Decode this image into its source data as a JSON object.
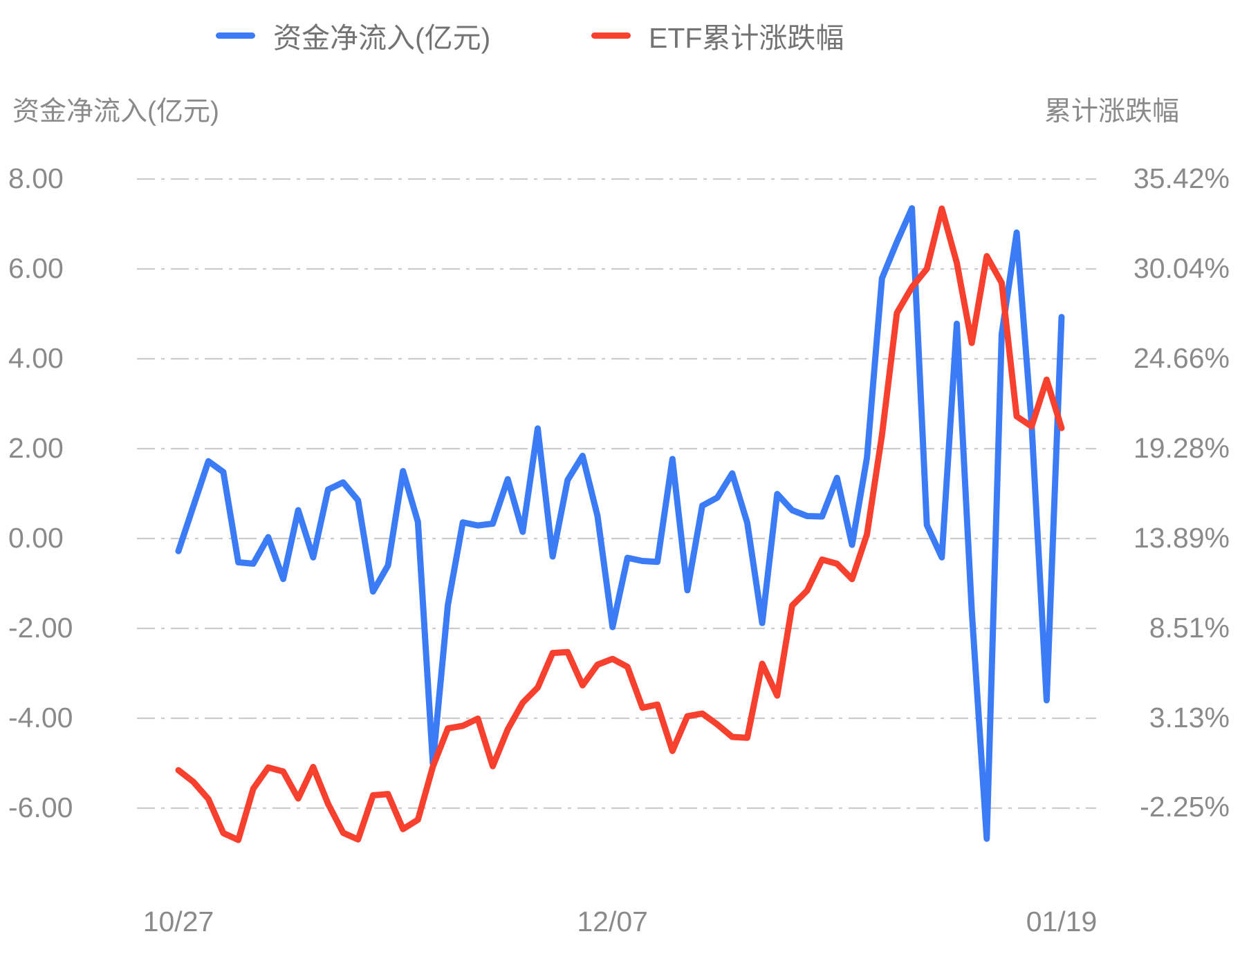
{
  "legend": {
    "items": [
      {
        "label": "资金净流入(亿元)",
        "color": "#3b7cf6"
      },
      {
        "label": "ETF累计涨跌幅",
        "color": "#f8402f"
      }
    ]
  },
  "axes": {
    "left_title": "资金净流入(亿元)",
    "right_title": "累计涨跌幅",
    "left_tick_labels": [
      "8.00",
      "6.00",
      "4.00",
      "2.00",
      "0.00",
      "-2.00",
      "-4.00",
      "-6.00"
    ],
    "left_tick_values": [
      8,
      6,
      4,
      2,
      0,
      -2,
      -4,
      -6
    ],
    "right_tick_labels": [
      "35.42%",
      "30.04%",
      "24.66%",
      "19.28%",
      "13.89%",
      "8.51%",
      "3.13%",
      "-2.25%"
    ],
    "right_tick_values": [
      35.42,
      30.04,
      24.66,
      19.28,
      13.89,
      8.51,
      3.13,
      -2.25
    ],
    "x_tick_labels": [
      {
        "label": "10/27",
        "index": 0
      },
      {
        "label": "12/07",
        "index": 29
      },
      {
        "label": "01/19",
        "index": 59
      }
    ]
  },
  "chart_data": {
    "type": "line",
    "title": "",
    "xlabel": "",
    "x_axis": {
      "type": "category-daily",
      "first_label": "10/27",
      "middle_label": "12/07",
      "last_label": "01/19",
      "point_count": 60
    },
    "left_axis": {
      "label": "资金净流入(亿元)",
      "range": [
        -8.06,
        8.0
      ],
      "gridlines_at": [
        8,
        6,
        4,
        2,
        0,
        -2,
        -4,
        -6
      ]
    },
    "right_axis": {
      "label": "累计涨跌幅",
      "range_percent": [
        -7.63,
        35.42
      ],
      "gridlines_at_percent": [
        35.42,
        30.04,
        24.66,
        19.28,
        13.89,
        8.51,
        3.13,
        -2.25
      ]
    },
    "grid": "horizontal dash-dot lines",
    "legend_position": "top-center",
    "series": [
      {
        "name": "资金净流入(亿元)",
        "axis": "left",
        "color": "#3b7cf6",
        "values": [
          -0.28,
          0.72,
          1.72,
          1.48,
          -0.53,
          -0.56,
          0.03,
          -0.9,
          0.63,
          -0.42,
          1.09,
          1.25,
          0.85,
          -1.18,
          -0.6,
          1.5,
          0.37,
          -5.01,
          -1.48,
          0.36,
          0.29,
          0.33,
          1.32,
          0.15,
          2.45,
          -0.4,
          1.3,
          1.84,
          0.5,
          -1.97,
          -0.43,
          -0.5,
          -0.52,
          1.77,
          -1.15,
          0.73,
          0.91,
          1.45,
          0.35,
          -1.88,
          0.99,
          0.63,
          0.5,
          0.49,
          1.35,
          -0.14,
          1.8,
          5.79,
          6.6,
          7.35,
          0.3,
          -0.42,
          4.78,
          -1.6,
          -6.68,
          4.55,
          6.81,
          2.53,
          -3.6,
          4.93
        ]
      },
      {
        "name": "ETF累计涨跌幅",
        "axis": "right",
        "unit": "%",
        "color": "#f8402f",
        "values": [
          0.0,
          -0.7,
          -1.73,
          -3.77,
          -4.18,
          -1.11,
          0.16,
          -0.08,
          -1.7,
          0.19,
          -2.02,
          -3.75,
          -4.15,
          -1.51,
          -1.43,
          -3.53,
          -2.97,
          0.21,
          2.5,
          2.66,
          3.09,
          0.24,
          2.45,
          4.04,
          4.95,
          7.02,
          7.08,
          5.08,
          6.32,
          6.67,
          6.19,
          3.74,
          3.93,
          1.15,
          3.23,
          3.39,
          2.74,
          1.99,
          1.94,
          6.38,
          4.47,
          9.86,
          10.76,
          12.62,
          12.37,
          11.45,
          14.13,
          20.08,
          27.4,
          28.94,
          30.04,
          33.65,
          30.4,
          25.6,
          30.8,
          29.2,
          21.2,
          20.6,
          23.4,
          20.5
        ]
      }
    ]
  }
}
